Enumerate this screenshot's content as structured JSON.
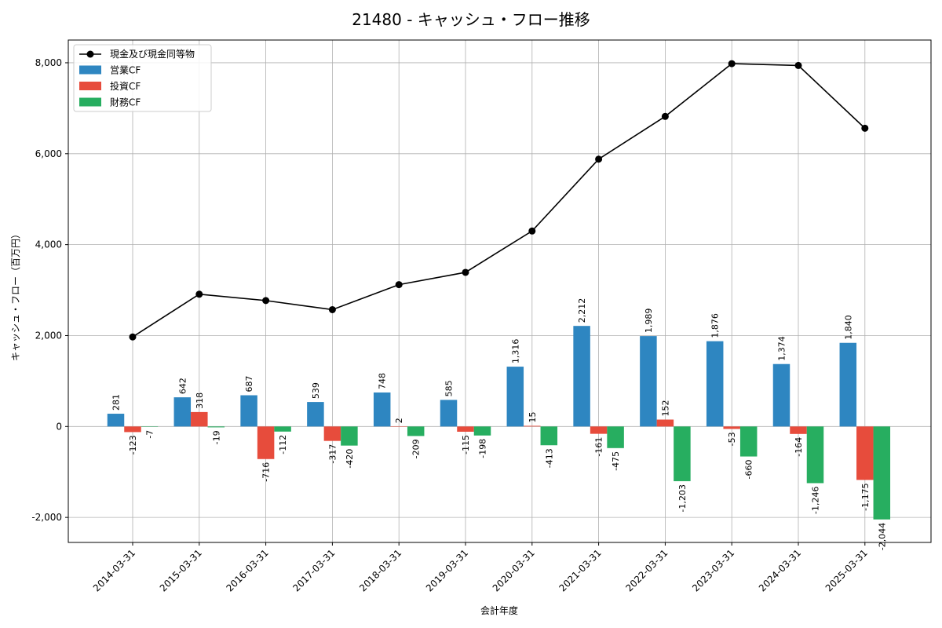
{
  "chart_data": {
    "type": "bar",
    "title": "21480 - キャッシュ・フロー推移",
    "xlabel": "会計年度",
    "ylabel": "キャッシュ・フロー（百万円）",
    "ylim": [
      -2550,
      8500
    ],
    "yticks": [
      -2000,
      0,
      2000,
      4000,
      6000,
      8000
    ],
    "ytick_labels": [
      "-2,000",
      "0",
      "2,000",
      "4,000",
      "6,000",
      "8,000"
    ],
    "grid": true,
    "legend_position": "top-left",
    "categories": [
      "2014-03-31",
      "2015-03-31",
      "2016-03-31",
      "2017-03-31",
      "2018-03-31",
      "2019-03-31",
      "2020-03-31",
      "2021-03-31",
      "2022-03-31",
      "2023-03-31",
      "2024-03-31",
      "2025-03-31"
    ],
    "series": [
      {
        "name": "営業CF",
        "type": "bar",
        "color": "#2e86c1",
        "values": [
          281,
          642,
          687,
          539,
          748,
          585,
          1316,
          2212,
          1989,
          1876,
          1374,
          1840
        ],
        "labels": [
          "281",
          "642",
          "687",
          "539",
          "748",
          "585",
          "1,316",
          "2,212",
          "1,989",
          "1,876",
          "1,374",
          "1,840"
        ]
      },
      {
        "name": "投資CF",
        "type": "bar",
        "color": "#e74c3c",
        "values": [
          -123,
          318,
          -716,
          -317,
          2,
          -115,
          15,
          -161,
          152,
          -53,
          -164,
          -1175
        ],
        "labels": [
          "-123",
          "318",
          "-716",
          "-317",
          "2",
          "-115",
          "15",
          "-161",
          "152",
          "-53",
          "-164",
          "-1,175"
        ]
      },
      {
        "name": "財務CF",
        "type": "bar",
        "color": "#27ae60",
        "values": [
          -7,
          -19,
          -112,
          -420,
          -209,
          -198,
          -413,
          -475,
          -1203,
          -660,
          -1246,
          -2044
        ],
        "labels": [
          "-7",
          "-19",
          "-112",
          "-420",
          "-209",
          "-198",
          "-413",
          "-475",
          "-1,203",
          "-660",
          "-1,246",
          "-2,044"
        ]
      },
      {
        "name": "現金及び現金同等物",
        "type": "line",
        "color": "#000000",
        "values": [
          1970,
          2910,
          2770,
          2570,
          3120,
          3390,
          4300,
          5880,
          6820,
          7980,
          7940,
          6560
        ]
      }
    ]
  }
}
